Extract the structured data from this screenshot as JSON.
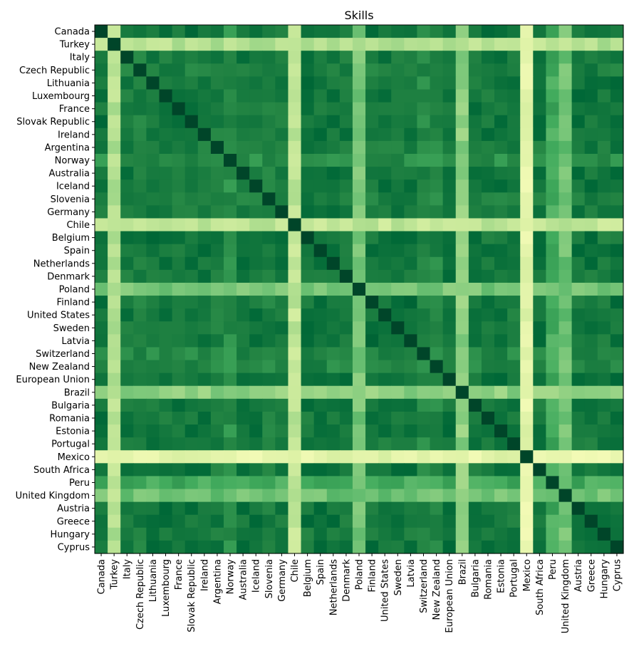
{
  "chart_data": {
    "type": "heatmap",
    "title": "Skills",
    "categories": [
      "Canada",
      "Turkey",
      "Italy",
      "Czech Republic",
      "Lithuania",
      "Luxembourg",
      "France",
      "Slovak Republic",
      "Ireland",
      "Argentina",
      "Norway",
      "Australia",
      "Iceland",
      "Slovenia",
      "Germany",
      "Chile",
      "Belgium",
      "Spain",
      "Netherlands",
      "Denmark",
      "Poland",
      "Finland",
      "United States",
      "Sweden",
      "Latvia",
      "Switzerland",
      "New Zealand",
      "European Union",
      "Brazil",
      "Bulgaria",
      "Romania",
      "Estonia",
      "Portugal",
      "Mexico",
      "South Africa",
      "Peru",
      "United Kingdom",
      "Austria",
      "Greece",
      "Hungary",
      "Cyprus"
    ],
    "colormap": "YlGn",
    "value_range": [
      0,
      1
    ],
    "row_means": [
      0.82,
      0.35,
      0.8,
      0.78,
      0.82,
      0.82,
      0.81,
      0.82,
      0.82,
      0.79,
      0.72,
      0.82,
      0.82,
      0.78,
      0.8,
      0.32,
      0.82,
      0.83,
      0.82,
      0.81,
      0.5,
      0.83,
      0.81,
      0.82,
      0.83,
      0.74,
      0.75,
      0.82,
      0.45,
      0.81,
      0.81,
      0.82,
      0.8,
      0.2,
      0.82,
      0.62,
      0.52,
      0.82,
      0.82,
      0.79,
      0.82
    ],
    "grid": false,
    "legend": "none"
  }
}
